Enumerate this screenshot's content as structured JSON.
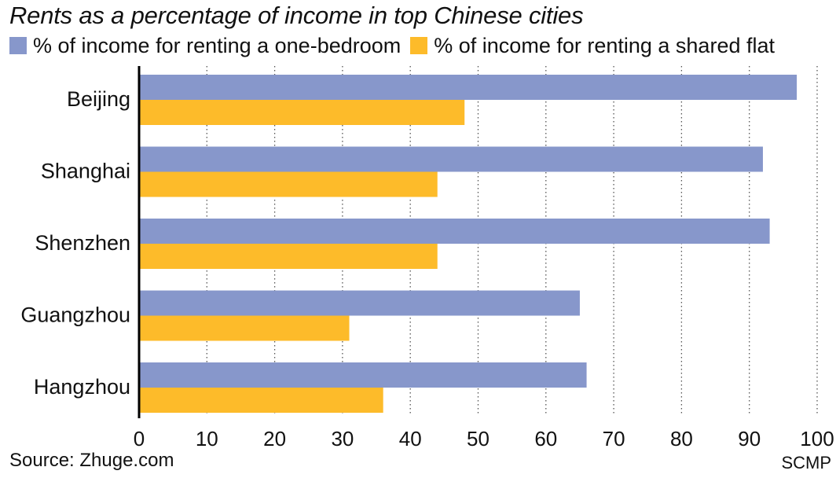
{
  "chart_data": {
    "type": "bar",
    "orientation": "horizontal",
    "title": "Rents as a percentage of income in top Chinese cities",
    "categories": [
      "Beijing",
      "Shanghai",
      "Shenzhen",
      "Guangzhou",
      "Hangzhou"
    ],
    "series": [
      {
        "name": "% of income for renting a one-bedroom",
        "color": "#8797CB",
        "values": [
          97,
          92,
          93,
          65,
          66
        ]
      },
      {
        "name": "% of income for renting a shared flat",
        "color": "#FDBB2A",
        "values": [
          48,
          44,
          44,
          31,
          36
        ]
      }
    ],
    "xlim": [
      0,
      100
    ],
    "xticks": [
      0,
      10,
      20,
      30,
      40,
      50,
      60,
      70,
      80,
      90,
      100
    ],
    "grid": "vertical dotted",
    "legend_position": "top-left"
  },
  "source": "Source: Zhuge.com",
  "credit": "SCMP"
}
